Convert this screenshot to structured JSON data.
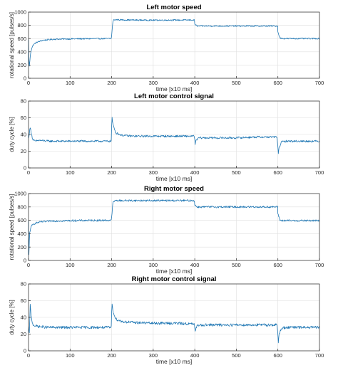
{
  "chart_data": [
    {
      "type": "line",
      "title": "Left motor speed",
      "xlabel": "time [x10 ms]",
      "ylabel": "rotational speed [pulses/s]",
      "xlim": [
        0,
        700
      ],
      "ylim": [
        0,
        1000
      ],
      "xticks": [
        0,
        100,
        200,
        300,
        400,
        500,
        600,
        700
      ],
      "yticks": [
        0,
        200,
        400,
        600,
        800,
        1000
      ],
      "grid": true,
      "color": "#1f77b4",
      "series": [
        {
          "x": [
            0,
            1,
            2,
            3,
            5,
            8,
            12,
            20,
            35,
            60,
            100,
            150,
            199,
            200,
            203,
            205,
            210,
            250,
            300,
            350,
            399,
            400,
            405,
            450,
            500,
            550,
            599,
            600,
            605,
            610,
            650,
            700
          ],
          "y": [
            580,
            280,
            180,
            250,
            380,
            460,
            510,
            545,
            575,
            590,
            595,
            598,
            600,
            650,
            860,
            880,
            885,
            880,
            878,
            880,
            880,
            820,
            790,
            790,
            790,
            790,
            790,
            700,
            610,
            600,
            600,
            600
          ],
          "noise": 10
        }
      ]
    },
    {
      "type": "line",
      "title": "Left motor control signal",
      "xlabel": "time [x10 ms]",
      "ylabel": "duty cycle [%]",
      "xlim": [
        0,
        700
      ],
      "ylim": [
        0,
        80
      ],
      "xticks": [
        0,
        100,
        200,
        300,
        400,
        500,
        600,
        700
      ],
      "yticks": [
        0,
        20,
        40,
        60,
        80
      ],
      "grid": true,
      "color": "#1f77b4",
      "series": [
        {
          "x": [
            0,
            2,
            4,
            6,
            10,
            15,
            25,
            50,
            100,
            150,
            199,
            200,
            201,
            203,
            210,
            225,
            250,
            300,
            350,
            399,
            400,
            401,
            403,
            410,
            450,
            500,
            550,
            598,
            600,
            601,
            603,
            608,
            620,
            650,
            700
          ],
          "y": [
            35,
            42,
            48,
            44,
            34,
            32,
            33,
            32,
            32,
            32,
            32,
            50,
            60,
            52,
            42,
            39,
            38,
            38,
            38,
            38,
            33,
            28,
            33,
            36,
            36,
            36,
            37,
            37,
            24,
            18,
            24,
            31,
            32,
            32,
            32
          ],
          "noise": 1.2
        }
      ]
    },
    {
      "type": "line",
      "title": "Right motor speed",
      "xlabel": "time [x10 ms]",
      "ylabel": "rotational speed [pulses/s]",
      "xlim": [
        0,
        700
      ],
      "ylim": [
        0,
        1000
      ],
      "xticks": [
        0,
        100,
        200,
        300,
        400,
        500,
        600,
        700
      ],
      "yticks": [
        0,
        200,
        400,
        600,
        800,
        1000
      ],
      "grid": true,
      "color": "#1f77b4",
      "series": [
        {
          "x": [
            0,
            1,
            2,
            3,
            5,
            8,
            12,
            20,
            35,
            60,
            100,
            150,
            199,
            200,
            203,
            205,
            210,
            250,
            300,
            350,
            399,
            400,
            405,
            450,
            500,
            550,
            599,
            600,
            605,
            610,
            650,
            700
          ],
          "y": [
            580,
            80,
            300,
            420,
            480,
            520,
            545,
            565,
            580,
            590,
            595,
            598,
            600,
            650,
            860,
            880,
            895,
            895,
            895,
            895,
            895,
            830,
            800,
            800,
            800,
            800,
            800,
            700,
            605,
            595,
            595,
            595
          ],
          "noise": 14
        }
      ]
    },
    {
      "type": "line",
      "title": "Right motor control signal",
      "xlabel": "time [x10 ms]",
      "ylabel": "duty cycle [%]",
      "xlim": [
        0,
        700
      ],
      "ylim": [
        0,
        80
      ],
      "xticks": [
        0,
        100,
        200,
        300,
        400,
        500,
        600,
        700
      ],
      "yticks": [
        0,
        20,
        40,
        60,
        80
      ],
      "grid": true,
      "color": "#1f77b4",
      "series": [
        {
          "x": [
            0,
            2,
            4,
            6,
            10,
            15,
            25,
            50,
            100,
            150,
            199,
            200,
            201,
            203,
            210,
            225,
            250,
            300,
            350,
            399,
            400,
            401,
            403,
            410,
            450,
            500,
            550,
            598,
            600,
            601,
            603,
            608,
            620,
            650,
            700
          ],
          "y": [
            28,
            20,
            55,
            42,
            32,
            30,
            29,
            28,
            28,
            28,
            28,
            45,
            57,
            48,
            38,
            35,
            34,
            33,
            33,
            32,
            26,
            22,
            28,
            31,
            31,
            31,
            31,
            31,
            18,
            10,
            20,
            27,
            28,
            28,
            28
          ],
          "noise": 1.6
        }
      ]
    }
  ]
}
